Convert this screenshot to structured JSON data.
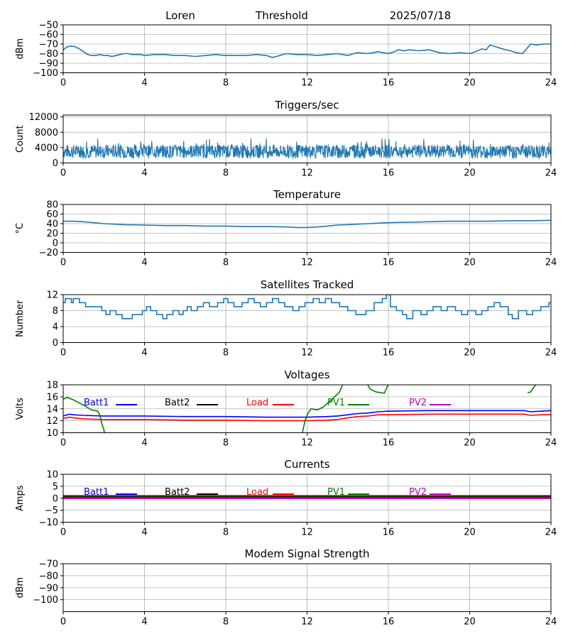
{
  "header": {
    "station": "Loren",
    "mode": "Threshold",
    "date": "2025/07/18"
  },
  "chart_data": [
    {
      "id": "threshold",
      "type": "line",
      "title": "",
      "ylabel": "dBm",
      "xlim": [
        0,
        24
      ],
      "ylim": [
        -100,
        -50
      ],
      "xticks": [
        0,
        4,
        8,
        12,
        16,
        20,
        24
      ],
      "yticks": [
        -100,
        -90,
        -80,
        -70,
        -60,
        -50
      ],
      "grid": true,
      "series": [
        {
          "color": "#1f77b4",
          "x": [
            0,
            0.2,
            0.4,
            0.6,
            0.8,
            1,
            1.2,
            1.4,
            1.6,
            1.8,
            2,
            2.2,
            2.4,
            2.6,
            2.8,
            3,
            3.2,
            3.4,
            3.6,
            3.8,
            4,
            4.5,
            5,
            5.5,
            6,
            6.5,
            7,
            7.5,
            8,
            8.5,
            9,
            9.5,
            10,
            10.3,
            10.5,
            10.8,
            11,
            11.5,
            12,
            12.5,
            13,
            13.5,
            14,
            14.3,
            14.5,
            15,
            15.5,
            16,
            16.3,
            16.5,
            16.8,
            17,
            17.5,
            18,
            18.5,
            19,
            19.5,
            20,
            20.3,
            20.6,
            20.8,
            21,
            21.3,
            21.6,
            22,
            22.3,
            22.6,
            22.8,
            23,
            23.3,
            23.6,
            24
          ],
          "y": [
            -76,
            -73,
            -72,
            -73,
            -75,
            -78,
            -81,
            -82,
            -82,
            -81,
            -82,
            -82,
            -83,
            -82,
            -81,
            -80,
            -80,
            -81,
            -81,
            -81,
            -82,
            -81,
            -81,
            -82,
            -82,
            -83,
            -82,
            -81,
            -82,
            -82,
            -82,
            -81,
            -82,
            -84,
            -83,
            -81,
            -80,
            -81,
            -81,
            -82,
            -81,
            -80,
            -82,
            -80,
            -79,
            -80,
            -78,
            -80,
            -78,
            -76,
            -77,
            -76,
            -77,
            -76,
            -79,
            -80,
            -79,
            -80,
            -78,
            -75,
            -76,
            -71,
            -73,
            -75,
            -77,
            -79,
            -80,
            -75,
            -70,
            -71,
            -70,
            -70
          ]
        }
      ]
    },
    {
      "id": "triggers",
      "type": "line",
      "title": "Triggers/sec",
      "ylabel": "Count",
      "xlim": [
        0,
        24
      ],
      "ylim": [
        0,
        12500
      ],
      "xticks": [
        0,
        4,
        8,
        12,
        16,
        20,
        24
      ],
      "yticks": [
        0,
        4000,
        8000,
        12000
      ],
      "grid": true,
      "noise": {
        "mean": 3000,
        "amplitude": 1800,
        "spike_max": 6500,
        "seed": 7
      }
    },
    {
      "id": "temperature",
      "type": "line",
      "title": "Temperature",
      "ylabel": "°C",
      "xlim": [
        0,
        24
      ],
      "ylim": [
        -20,
        80
      ],
      "xticks": [
        0,
        4,
        8,
        12,
        16,
        20,
        24
      ],
      "yticks": [
        -20,
        0,
        20,
        40,
        60,
        80
      ],
      "grid": true,
      "series": [
        {
          "color": "#1f77b4",
          "x": [
            0,
            0.5,
            1,
            1.5,
            2,
            3,
            4,
            5,
            6,
            7,
            8,
            9,
            10,
            11,
            11.5,
            12,
            12.5,
            13,
            13.5,
            14,
            15,
            16,
            17,
            18,
            19,
            20,
            21,
            22,
            23,
            24
          ],
          "y": [
            45,
            45,
            44,
            42,
            40,
            38,
            37,
            36,
            36,
            35,
            35,
            34,
            34,
            33,
            32,
            32,
            33,
            35,
            37,
            38,
            40,
            42,
            43,
            44,
            45,
            45,
            45,
            46,
            46,
            47
          ]
        }
      ]
    },
    {
      "id": "satellites",
      "type": "line",
      "title": "Satellites Tracked",
      "ylabel": "Number",
      "xlim": [
        0,
        24
      ],
      "ylim": [
        0,
        12
      ],
      "xticks": [
        0,
        4,
        8,
        12,
        16,
        20,
        24
      ],
      "yticks": [
        0,
        4,
        8,
        12
      ],
      "grid": true,
      "series": [
        {
          "color": "#1f77b4",
          "step": true,
          "x": [
            0,
            0.1,
            0.4,
            0.5,
            0.8,
            1.1,
            1.5,
            1.9,
            2.1,
            2.3,
            2.6,
            2.9,
            3.4,
            3.9,
            4.1,
            4.3,
            4.6,
            4.9,
            5.1,
            5.4,
            5.7,
            5.9,
            6.1,
            6.3,
            6.6,
            6.9,
            7.2,
            7.6,
            7.9,
            8.1,
            8.4,
            8.8,
            9.1,
            9.4,
            9.7,
            10,
            10.3,
            10.6,
            10.9,
            11.3,
            11.6,
            11.9,
            12.3,
            12.6,
            12.9,
            13.2,
            13.6,
            14,
            14.4,
            14.9,
            15.3,
            15.7,
            15.9,
            16.1,
            16.4,
            16.7,
            16.9,
            17.2,
            17.6,
            17.9,
            18.2,
            18.6,
            18.9,
            19.3,
            19.6,
            19.9,
            20.3,
            20.6,
            20.9,
            21.2,
            21.5,
            21.9,
            22.1,
            22.4,
            22.8,
            23.1,
            23.5,
            23.9,
            24
          ],
          "y": [
            10,
            11,
            10,
            11,
            10,
            9,
            9,
            8,
            7,
            8,
            7,
            6,
            7,
            8,
            9,
            8,
            7,
            6,
            7,
            8,
            7,
            8,
            9,
            8,
            9,
            10,
            9,
            10,
            11,
            10,
            9,
            10,
            11,
            10,
            9,
            10,
            11,
            10,
            9,
            8,
            9,
            10,
            11,
            10,
            11,
            10,
            9,
            8,
            7,
            8,
            10,
            11,
            12,
            9,
            8,
            7,
            6,
            8,
            7,
            8,
            9,
            8,
            9,
            8,
            7,
            8,
            7,
            8,
            9,
            10,
            9,
            7,
            6,
            8,
            7,
            8,
            9,
            10,
            10
          ]
        }
      ]
    },
    {
      "id": "voltages",
      "type": "line",
      "title": "Voltages",
      "ylabel": "Volts",
      "xlim": [
        0,
        24
      ],
      "ylim": [
        10,
        18
      ],
      "xticks": [
        0,
        4,
        8,
        12,
        16,
        20,
        24
      ],
      "yticks": [
        10,
        12,
        14,
        16,
        18
      ],
      "grid": true,
      "legend": [
        "Batt1",
        "Batt2",
        "Load",
        "PV1",
        "PV2"
      ],
      "series": [
        {
          "name": "Batt1",
          "color": "#0000ff",
          "x": [
            0,
            0.3,
            0.5,
            1,
            2,
            4,
            6,
            8,
            10,
            12,
            13,
            13.5,
            14,
            14.5,
            15,
            15.5,
            16,
            18,
            20,
            22,
            22.7,
            23,
            23.5,
            24
          ],
          "y": [
            12.8,
            13.1,
            13.0,
            12.9,
            12.8,
            12.8,
            12.7,
            12.7,
            12.6,
            12.6,
            12.7,
            12.8,
            13.0,
            13.2,
            13.3,
            13.5,
            13.6,
            13.7,
            13.7,
            13.7,
            13.7,
            13.5,
            13.6,
            13.7
          ]
        },
        {
          "name": "Load",
          "color": "#ff0000",
          "x": [
            0,
            0.3,
            0.5,
            1,
            2,
            4,
            6,
            8,
            10,
            11,
            12,
            13,
            13.5,
            14,
            14.5,
            15,
            15.5,
            16,
            18,
            20,
            22,
            22.7,
            23,
            23.5,
            24
          ],
          "y": [
            12.4,
            12.6,
            12.5,
            12.3,
            12.2,
            12.2,
            12.1,
            12.1,
            12.0,
            12.0,
            12.0,
            12.1,
            12.2,
            12.5,
            12.7,
            12.8,
            13.0,
            13.0,
            13.1,
            13.1,
            13.1,
            13.1,
            12.9,
            13.0,
            13.0
          ]
        },
        {
          "name": "PV1",
          "color": "#008000",
          "x": [
            0,
            0.2,
            0.5,
            1,
            1.4,
            1.7,
            1.8,
            1.9,
            2.0,
            2.05
          ],
          "y": [
            15.6,
            15.9,
            15.5,
            14.6,
            13.8,
            13.6,
            13.0,
            11.5,
            10.5,
            9.5
          ]
        },
        {
          "name": "PV1",
          "color": "#008000",
          "x": [
            11.75,
            11.8,
            11.9,
            12.05,
            12.2,
            12.5,
            12.8,
            13.2,
            13.6,
            13.8
          ],
          "y": [
            9.5,
            10.5,
            12.0,
            13.3,
            14.0,
            13.8,
            14.3,
            15.5,
            16.8,
            18.5
          ]
        },
        {
          "name": "PV1",
          "color": "#008000",
          "x": [
            14.9,
            15.1,
            15.4,
            15.8,
            16.05
          ],
          "y": [
            18.5,
            17.3,
            16.8,
            16.6,
            18.5
          ]
        },
        {
          "name": "PV1",
          "color": "#008000",
          "x": [
            22.85,
            23.0,
            23.2,
            23.35
          ],
          "y": [
            16.7,
            16.8,
            17.8,
            18.5
          ]
        }
      ]
    },
    {
      "id": "currents",
      "type": "line",
      "title": "Currents",
      "ylabel": "Amps",
      "xlim": [
        0,
        24
      ],
      "ylim": [
        -10,
        10
      ],
      "xticks": [
        0,
        4,
        8,
        12,
        16,
        20,
        24
      ],
      "yticks": [
        -10,
        -5,
        0,
        5,
        10
      ],
      "grid": true,
      "legend": [
        "Batt1",
        "Batt2",
        "Load",
        "PV1",
        "PV2"
      ],
      "series": [
        {
          "name": "Load",
          "color": "#ff0000",
          "x": [
            0,
            24
          ],
          "y": [
            1.0,
            1.0
          ]
        },
        {
          "name": "Batt2",
          "color": "#000000",
          "x": [
            0,
            24
          ],
          "y": [
            0.6,
            0.6
          ]
        },
        {
          "name": "PV1",
          "color": "#008000",
          "x": [
            0,
            24
          ],
          "y": [
            0.35,
            0.35
          ]
        },
        {
          "name": "Batt1",
          "color": "#0000ff",
          "x": [
            0,
            24
          ],
          "y": [
            0.15,
            0.15
          ]
        },
        {
          "name": "PV2",
          "color": "#bf00bf",
          "x": [
            0,
            24
          ],
          "y": [
            0.0,
            0.0
          ]
        }
      ]
    },
    {
      "id": "modem",
      "type": "line",
      "title": "Modem Signal Strength",
      "ylabel": "dBm",
      "xlim": [
        0,
        24
      ],
      "ylim": [
        -110,
        -70
      ],
      "xticks": [
        0,
        4,
        8,
        12,
        16,
        20,
        24
      ],
      "yticks": [
        -100,
        -90,
        -80,
        -70
      ],
      "grid": true,
      "series": []
    }
  ],
  "legend_colors": {
    "Batt1": "#0000ff",
    "Batt2": "#000000",
    "Load": "#ff0000",
    "PV1": "#008000",
    "PV2": "#bf00bf"
  }
}
